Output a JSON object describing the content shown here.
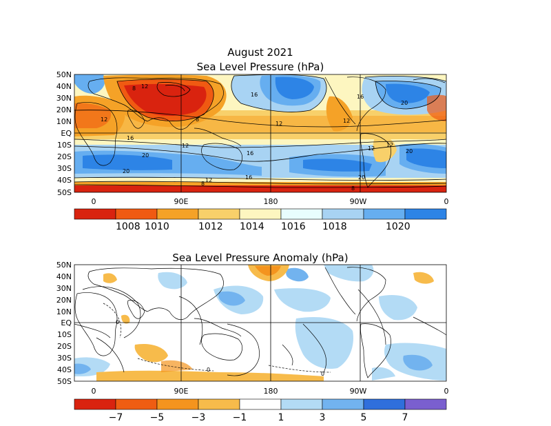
{
  "slp_panel": {
    "title_line1": "August 2021",
    "title_line2": "Sea Level Pressure (hPa)",
    "lat_ticks": [
      "50N",
      "40N",
      "30N",
      "20N",
      "10N",
      "EQ",
      "10S",
      "20S",
      "30S",
      "40S",
      "50S"
    ],
    "lon_ticks": [
      "0",
      "90E",
      "180",
      "90W",
      "0"
    ],
    "colorbar": {
      "colors": [
        "#d9230f",
        "#f05a12",
        "#f5a227",
        "#f8d06a",
        "#fdf6c0",
        "#e8fdfd",
        "#a8d3f3",
        "#66aef0",
        "#2d84e6"
      ],
      "labels": [
        "1008",
        "1010",
        "1012",
        "1014",
        "1016",
        "1018",
        "1020"
      ]
    },
    "contour_labels": [
      "12",
      "12",
      "8",
      "16",
      "12",
      "12",
      "8",
      "16",
      "12",
      "16",
      "20",
      "12",
      "20",
      "20",
      "12",
      "16",
      "20",
      "16",
      "20",
      "8",
      "12",
      "8"
    ]
  },
  "anomaly_panel": {
    "title": "Sea Level Pressure Anomaly (hPa)",
    "lat_ticks": [
      "50N",
      "40N",
      "30N",
      "20N",
      "10N",
      "EQ",
      "10S",
      "20S",
      "30S",
      "40S",
      "50S"
    ],
    "lon_ticks": [
      "0",
      "90E",
      "180",
      "90W",
      "0"
    ],
    "colorbar": {
      "colors": [
        "#d9230f",
        "#ef5d12",
        "#f4941e",
        "#f7bb4b",
        "#ffffff",
        "#b3dbf5",
        "#72b3ef",
        "#2f6fdc",
        "#7a5fcf"
      ],
      "labels": [
        "−7",
        "−5",
        "−3",
        "−1",
        "1",
        "3",
        "5",
        "7"
      ]
    },
    "contour_labels": [
      "0",
      "0",
      "0"
    ]
  }
}
